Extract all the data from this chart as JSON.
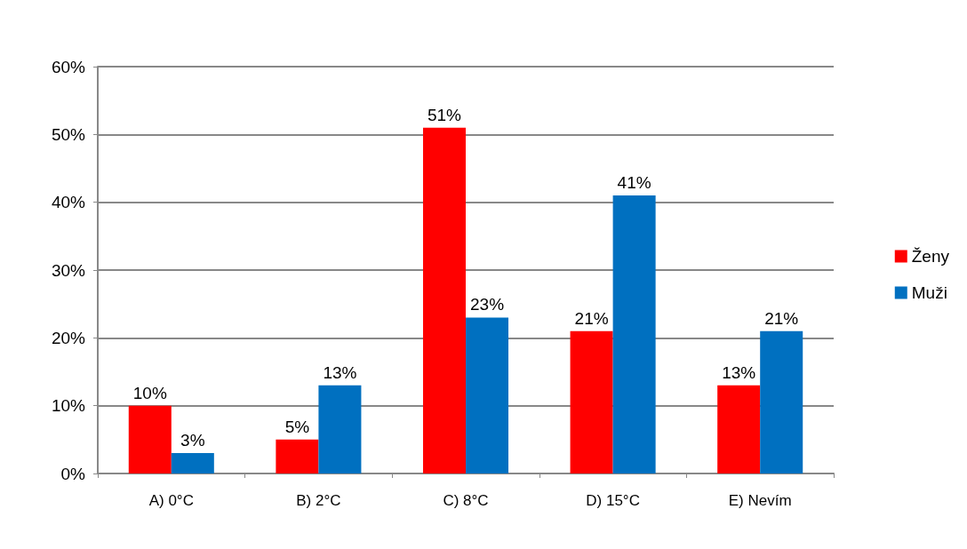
{
  "chart_data": {
    "type": "bar",
    "categories": [
      "A) 0°C",
      "B) 2°C",
      "C) 8°C",
      "D) 15°C",
      "E) Nevím"
    ],
    "series": [
      {
        "name": "Ženy",
        "color": "#ff0000",
        "values": [
          10,
          5,
          51,
          21,
          13
        ],
        "value_labels": [
          "10%",
          "5%",
          "51%",
          "21%",
          "13%"
        ]
      },
      {
        "name": "Muži",
        "color": "#0070c0",
        "values": [
          3,
          13,
          23,
          41,
          21
        ],
        "value_labels": [
          "3%",
          "13%",
          "23%",
          "41%",
          "21%"
        ]
      }
    ],
    "ylim": [
      0,
      60
    ],
    "yticks": [
      {
        "value": 0,
        "label": "0%"
      },
      {
        "value": 10,
        "label": "10%"
      },
      {
        "value": 20,
        "label": "20%"
      },
      {
        "value": 30,
        "label": "30%"
      },
      {
        "value": 40,
        "label": "40%"
      },
      {
        "value": 50,
        "label": "50%"
      },
      {
        "value": 60,
        "label": "60%"
      }
    ],
    "grid": "y",
    "legend": "right"
  }
}
